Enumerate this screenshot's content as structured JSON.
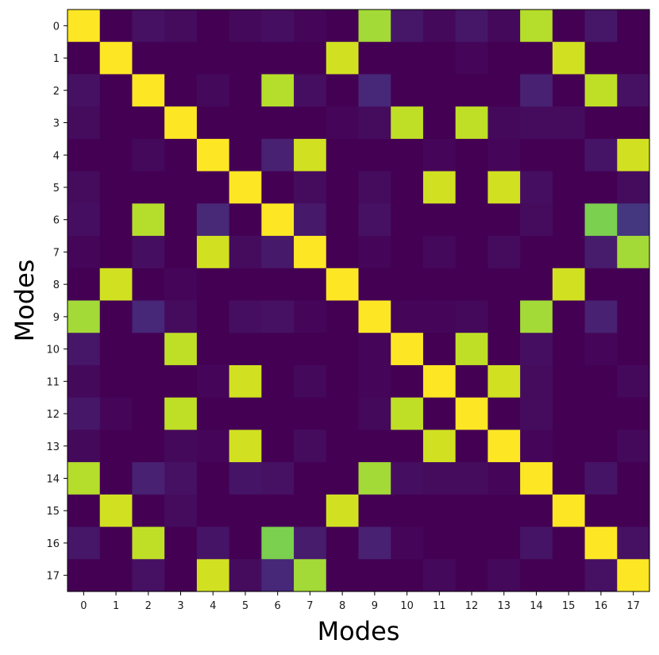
{
  "chart_data": {
    "type": "heatmap",
    "title": "",
    "xlabel": "Modes",
    "ylabel": "Modes",
    "x_ticks": [
      "0",
      "1",
      "2",
      "3",
      "4",
      "5",
      "6",
      "7",
      "8",
      "9",
      "10",
      "11",
      "12",
      "13",
      "14",
      "15",
      "16",
      "17"
    ],
    "y_ticks": [
      "0",
      "1",
      "2",
      "3",
      "4",
      "5",
      "6",
      "7",
      "8",
      "9",
      "10",
      "11",
      "12",
      "13",
      "14",
      "15",
      "16",
      "17"
    ],
    "value_range": [
      0,
      1
    ],
    "colormap": "viridis",
    "matrix": [
      [
        1.0,
        0.0,
        0.06,
        0.04,
        0.0,
        0.03,
        0.05,
        0.02,
        0.0,
        0.9,
        0.08,
        0.03,
        0.08,
        0.03,
        0.92,
        0.0,
        0.08,
        0.0
      ],
      [
        0.0,
        1.0,
        0.0,
        0.0,
        0.0,
        0.0,
        0.0,
        0.0,
        0.95,
        0.0,
        0.0,
        0.0,
        0.02,
        0.0,
        0.0,
        0.95,
        0.0,
        0.0
      ],
      [
        0.06,
        0.0,
        1.0,
        0.0,
        0.03,
        0.0,
        0.92,
        0.05,
        0.0,
        0.14,
        0.0,
        0.0,
        0.0,
        0.0,
        0.12,
        0.0,
        0.93,
        0.06
      ],
      [
        0.04,
        0.0,
        0.0,
        1.0,
        0.0,
        0.0,
        0.0,
        0.0,
        0.02,
        0.04,
        0.93,
        0.0,
        0.93,
        0.03,
        0.04,
        0.04,
        0.0,
        0.0
      ],
      [
        0.0,
        0.0,
        0.03,
        0.0,
        1.0,
        0.0,
        0.12,
        0.95,
        0.0,
        0.0,
        0.0,
        0.02,
        0.0,
        0.02,
        0.0,
        0.0,
        0.07,
        0.95
      ],
      [
        0.04,
        0.0,
        0.0,
        0.0,
        0.0,
        1.0,
        0.0,
        0.04,
        0.0,
        0.04,
        0.0,
        0.95,
        0.0,
        0.95,
        0.05,
        0.0,
        0.0,
        0.04
      ],
      [
        0.05,
        0.0,
        0.92,
        0.0,
        0.15,
        0.0,
        1.0,
        0.09,
        0.0,
        0.06,
        0.0,
        0.0,
        0.0,
        0.0,
        0.04,
        0.0,
        0.85,
        0.2
      ],
      [
        0.02,
        0.0,
        0.05,
        0.0,
        0.95,
        0.04,
        0.09,
        1.0,
        0.0,
        0.02,
        0.0,
        0.03,
        0.0,
        0.04,
        0.0,
        0.0,
        0.1,
        0.9
      ],
      [
        0.0,
        0.95,
        0.0,
        0.02,
        0.0,
        0.0,
        0.0,
        0.0,
        1.0,
        0.0,
        0.0,
        0.0,
        0.0,
        0.0,
        0.0,
        0.95,
        0.0,
        0.0
      ],
      [
        0.9,
        0.0,
        0.14,
        0.04,
        0.0,
        0.05,
        0.06,
        0.02,
        0.0,
        1.0,
        0.02,
        0.02,
        0.03,
        0.0,
        0.9,
        0.0,
        0.12,
        0.0
      ],
      [
        0.08,
        0.0,
        0.0,
        0.93,
        0.0,
        0.0,
        0.0,
        0.0,
        0.0,
        0.02,
        1.0,
        0.0,
        0.93,
        0.0,
        0.05,
        0.0,
        0.02,
        0.0
      ],
      [
        0.03,
        0.0,
        0.0,
        0.0,
        0.02,
        0.95,
        0.0,
        0.03,
        0.0,
        0.02,
        0.0,
        1.0,
        0.0,
        0.95,
        0.04,
        0.0,
        0.0,
        0.03
      ],
      [
        0.08,
        0.02,
        0.0,
        0.93,
        0.0,
        0.0,
        0.0,
        0.0,
        0.0,
        0.03,
        0.93,
        0.0,
        1.0,
        0.0,
        0.04,
        0.0,
        0.0,
        0.0
      ],
      [
        0.03,
        0.0,
        0.0,
        0.03,
        0.02,
        0.95,
        0.0,
        0.04,
        0.0,
        0.0,
        0.0,
        0.95,
        0.0,
        1.0,
        0.02,
        0.0,
        0.0,
        0.03
      ],
      [
        0.92,
        0.0,
        0.12,
        0.06,
        0.0,
        0.07,
        0.06,
        0.0,
        0.0,
        0.9,
        0.05,
        0.04,
        0.04,
        0.02,
        1.0,
        0.0,
        0.07,
        0.0
      ],
      [
        0.0,
        0.95,
        0.0,
        0.04,
        0.0,
        0.0,
        0.0,
        0.0,
        0.95,
        0.0,
        0.0,
        0.0,
        0.0,
        0.0,
        0.0,
        1.0,
        0.0,
        0.0
      ],
      [
        0.08,
        0.0,
        0.93,
        0.0,
        0.07,
        0.0,
        0.85,
        0.1,
        0.0,
        0.12,
        0.02,
        0.0,
        0.0,
        0.0,
        0.07,
        0.0,
        1.0,
        0.06
      ],
      [
        0.0,
        0.0,
        0.06,
        0.0,
        0.95,
        0.04,
        0.14,
        0.9,
        0.0,
        0.0,
        0.0,
        0.03,
        0.0,
        0.03,
        0.0,
        0.0,
        0.06,
        1.0
      ]
    ]
  }
}
